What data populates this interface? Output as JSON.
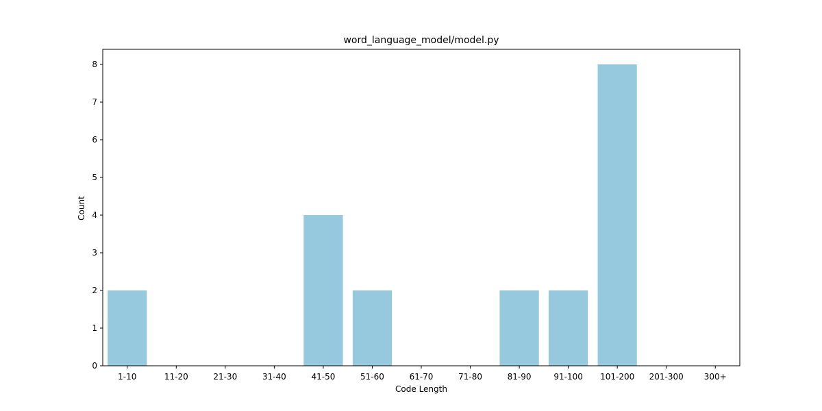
{
  "chart_data": {
    "type": "bar",
    "title": "word_language_model/model.py",
    "xlabel": "Code Length",
    "ylabel": "Count",
    "categories": [
      "1-10",
      "11-20",
      "21-30",
      "31-40",
      "41-50",
      "51-60",
      "61-70",
      "71-80",
      "81-90",
      "91-100",
      "101-200",
      "201-300",
      "300+"
    ],
    "values": [
      2,
      0,
      0,
      0,
      4,
      2,
      0,
      0,
      2,
      2,
      8,
      0,
      0
    ],
    "ylim": [
      0,
      8.4
    ],
    "yticks": [
      "0",
      "1",
      "2",
      "3",
      "4",
      "5",
      "6",
      "7",
      "8"
    ],
    "grid": false,
    "colors": {
      "bar": "#96c9de",
      "axis": "#000000",
      "background": "#ffffff"
    }
  }
}
